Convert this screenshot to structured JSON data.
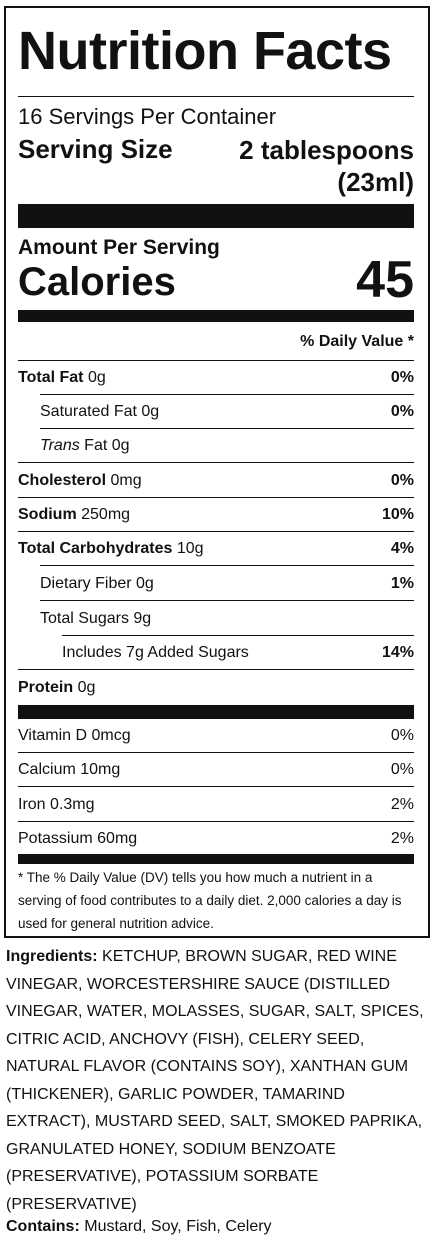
{
  "label": {
    "title": "Nutrition Facts",
    "servings_per_container": "16 Servings Per Container",
    "serving_size_label": "Serving Size",
    "serving_size_value_line1": "2 tablespoons",
    "serving_size_value_line2": "(23ml)",
    "amount_per_serving": "Amount Per Serving",
    "calories_label": "Calories",
    "calories_value": "45",
    "daily_value_header": "% Daily Value *",
    "nutrients": [
      {
        "name": "Total Fat",
        "amount": "0g",
        "pct": "0%"
      },
      {
        "name": "Saturated Fat",
        "amount": "0g",
        "pct": "0%"
      },
      {
        "name_italic": "Trans",
        "name": "Fat",
        "amount": "0g",
        "pct": ""
      },
      {
        "name": "Cholesterol",
        "amount": "0mg",
        "pct": "0%"
      },
      {
        "name": "Sodium",
        "amount": "250mg",
        "pct": "10%"
      },
      {
        "name": "Total Carbohydrates",
        "amount": "10g",
        "pct": "4%"
      },
      {
        "name": "Dietary Fiber",
        "amount": "0g",
        "pct": "1%"
      },
      {
        "name": "Total Sugars",
        "amount": "9g",
        "pct": ""
      },
      {
        "name": "Includes 7g Added Sugars",
        "amount": "",
        "pct": "14%"
      },
      {
        "name": "Protein",
        "amount": "0g",
        "pct": ""
      }
    ],
    "vitamins": [
      {
        "text": "Vitamin D 0mcg",
        "pct": "0%"
      },
      {
        "text": "Calcium 10mg",
        "pct": "0%"
      },
      {
        "text": "Iron 0.3mg",
        "pct": "2%"
      },
      {
        "text": "Potassium 60mg",
        "pct": "2%"
      }
    ],
    "footnote": "* The % Daily Value (DV) tells you how much a nutrient in a serving of food contributes to a daily diet. 2,000 calories a day is used for general nutrition advice."
  },
  "ingredients": {
    "heading": "Ingredients:",
    "text": "KETCHUP, BROWN SUGAR, RED WINE VINEGAR, WORCESTERSHIRE SAUCE (DISTILLED VINEGAR, WATER, MOLASSES, SUGAR, SALT, SPICES, CITRIC ACID, ANCHOVY (FISH), CELERY SEED, NATURAL FLAVOR (CONTAINS SOY), XANTHAN GUM (THICKENER), GARLIC POWDER, TAMARIND EXTRACT), MUSTARD SEED, SALT, SMOKED PAPRIKA, GRANULATED HONEY, SODIUM BENZOATE (PRESERVATIVE), POTASSIUM SORBATE (PRESERVATIVE)"
  },
  "contains": {
    "heading": "Contains:",
    "text": "Mustard, Soy, Fish, Celery"
  }
}
